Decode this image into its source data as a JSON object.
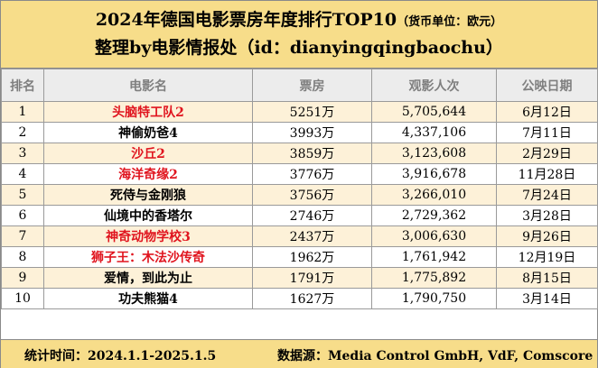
{
  "header": {
    "title": "2024年德国电影票房年度排行TOP10",
    "title_note": "（货币单位：欧元）",
    "subtitle": "整理by电影情报处（id：dianyingqingbaochu）"
  },
  "columns": [
    "排名",
    "电影名",
    "票房",
    "观影人次",
    "公映日期"
  ],
  "rows": [
    {
      "rank": "1",
      "title": "头脑特工队2",
      "gross": "5251万",
      "admissions": "5,705,644",
      "date": "6月12日",
      "highlight": true,
      "title_color": "red"
    },
    {
      "rank": "2",
      "title": "神偷奶爸4",
      "gross": "3993万",
      "admissions": "4,337,106",
      "date": "7月11日",
      "highlight": false,
      "title_color": "black"
    },
    {
      "rank": "3",
      "title": "沙丘2",
      "gross": "3859万",
      "admissions": "3,123,608",
      "date": "2月29日",
      "highlight": true,
      "title_color": "red"
    },
    {
      "rank": "4",
      "title": "海洋奇缘2",
      "gross": "3776万",
      "admissions": "3,916,678",
      "date": "11月28日",
      "highlight": false,
      "title_color": "red"
    },
    {
      "rank": "5",
      "title": "死侍与金刚狼",
      "gross": "3756万",
      "admissions": "3,266,010",
      "date": "7月24日",
      "highlight": true,
      "title_color": "black"
    },
    {
      "rank": "6",
      "title": "仙境中的香塔尔",
      "gross": "2746万",
      "admissions": "2,729,362",
      "date": "3月28日",
      "highlight": false,
      "title_color": "black"
    },
    {
      "rank": "7",
      "title": "神奇动物学校3",
      "gross": "2437万",
      "admissions": "3,006,630",
      "date": "9月26日",
      "highlight": true,
      "title_color": "red"
    },
    {
      "rank": "8",
      "title": "狮子王：木法沙传奇",
      "gross": "1962万",
      "admissions": "1,761,942",
      "date": "12月19日",
      "highlight": false,
      "title_color": "red"
    },
    {
      "rank": "9",
      "title": "爱情，到此为止",
      "gross": "1791万",
      "admissions": "1,775,892",
      "date": "8月15日",
      "highlight": true,
      "title_color": "black"
    },
    {
      "rank": "10",
      "title": "功夫熊猫4",
      "gross": "1627万",
      "admissions": "1,790,750",
      "date": "3月14日",
      "highlight": false,
      "title_color": "black"
    }
  ],
  "footer": {
    "period": "统计时间：2024.1.1-2025.1.5",
    "source": "数据源：Media Control GmbH, VdF, Comscore"
  }
}
